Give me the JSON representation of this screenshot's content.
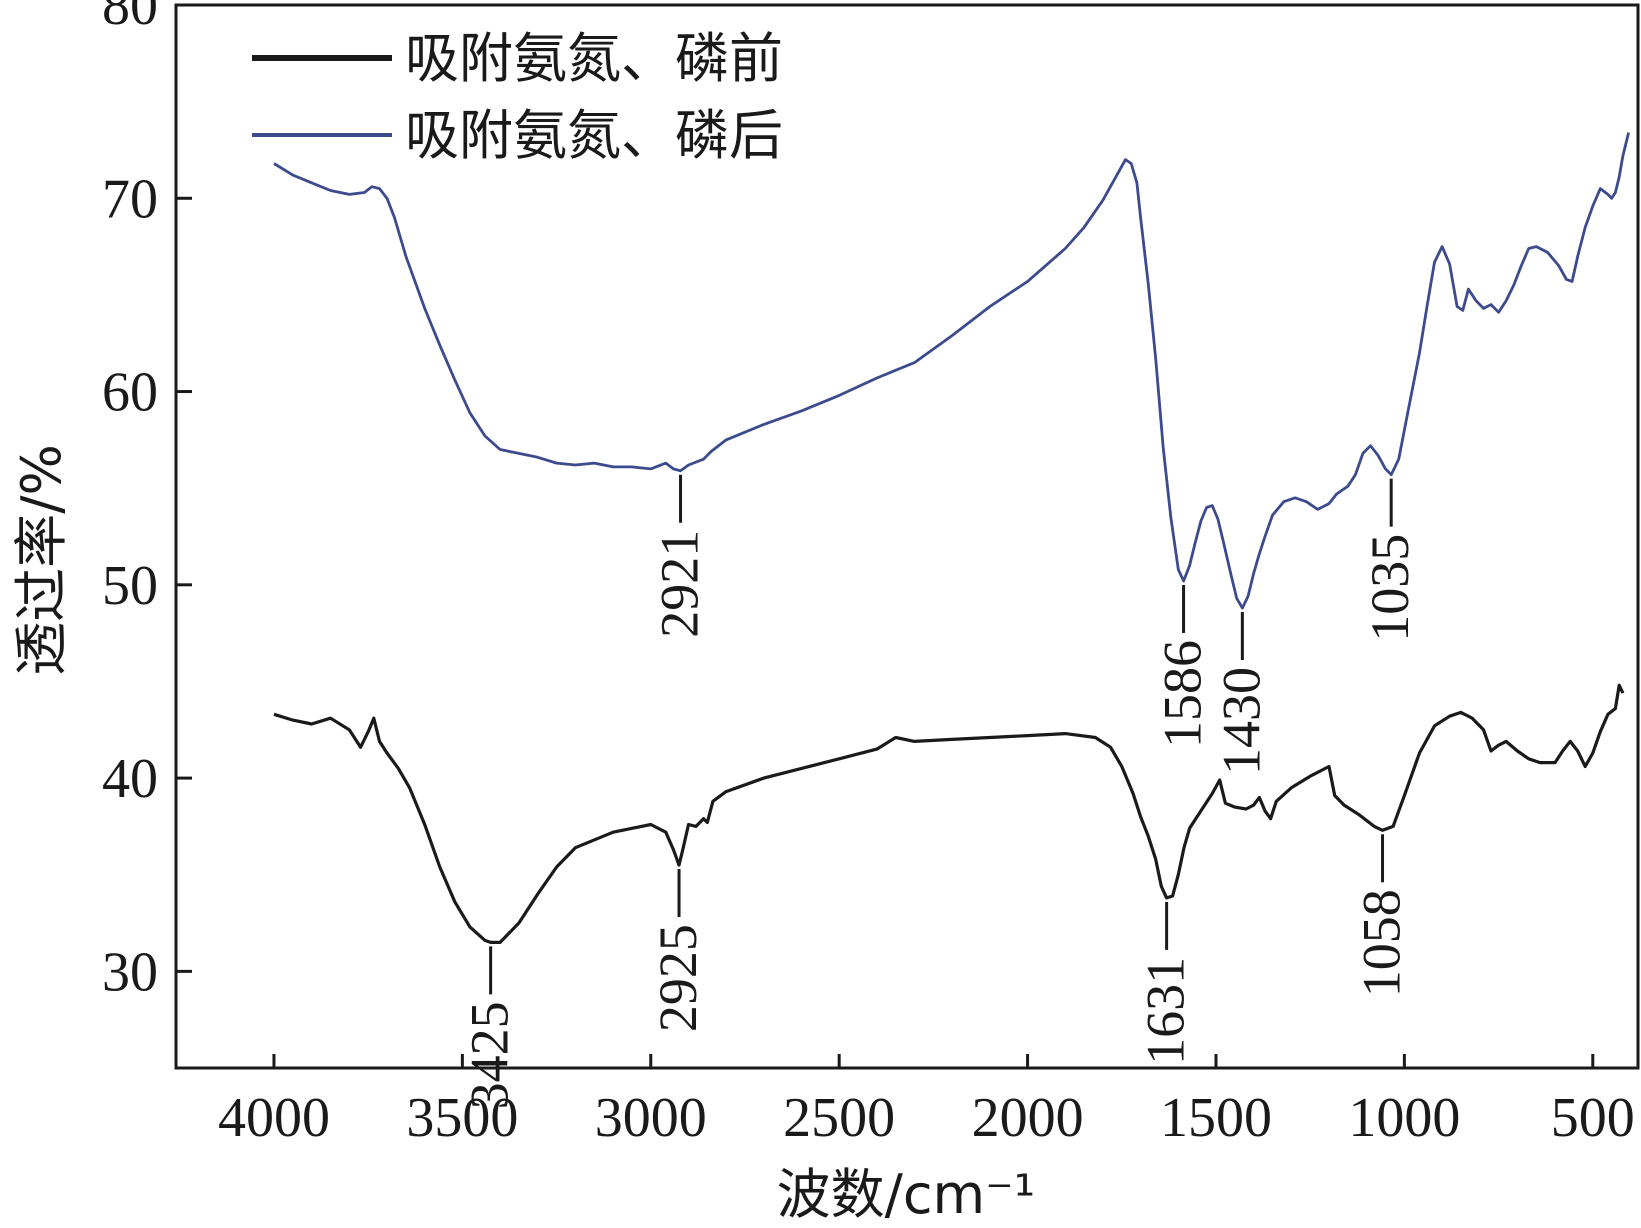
{
  "chart_data": {
    "type": "line",
    "xlabel": "波数/cm⁻¹",
    "ylabel": "透过率/%",
    "xlim": [
      4260,
      380
    ],
    "ylim": [
      25,
      80
    ],
    "x_reversed": true,
    "xticks": [
      4000,
      3500,
      3000,
      2500,
      2000,
      1500,
      1000,
      500
    ],
    "yticks": [
      30,
      40,
      50,
      60,
      70,
      80
    ],
    "legend": {
      "placement": "top-left"
    },
    "grid": false,
    "series": [
      {
        "name": "吸附氨氮、磷前",
        "color": "#1a1a1a",
        "points": [
          [
            4000,
            43.3
          ],
          [
            3950,
            43.0
          ],
          [
            3900,
            42.8
          ],
          [
            3850,
            43.1
          ],
          [
            3800,
            42.5
          ],
          [
            3770,
            41.6
          ],
          [
            3750,
            42.4
          ],
          [
            3735,
            43.1
          ],
          [
            3720,
            41.9
          ],
          [
            3700,
            41.3
          ],
          [
            3670,
            40.5
          ],
          [
            3640,
            39.5
          ],
          [
            3600,
            37.6
          ],
          [
            3560,
            35.4
          ],
          [
            3520,
            33.6
          ],
          [
            3480,
            32.3
          ],
          [
            3440,
            31.6
          ],
          [
            3425,
            31.5
          ],
          [
            3400,
            31.5
          ],
          [
            3350,
            32.5
          ],
          [
            3300,
            34.0
          ],
          [
            3250,
            35.4
          ],
          [
            3200,
            36.4
          ],
          [
            3100,
            37.2
          ],
          [
            3000,
            37.6
          ],
          [
            2960,
            37.2
          ],
          [
            2940,
            36.3
          ],
          [
            2925,
            35.5
          ],
          [
            2915,
            36.3
          ],
          [
            2900,
            37.6
          ],
          [
            2880,
            37.5
          ],
          [
            2860,
            37.9
          ],
          [
            2850,
            37.7
          ],
          [
            2835,
            38.8
          ],
          [
            2800,
            39.3
          ],
          [
            2700,
            40.0
          ],
          [
            2600,
            40.5
          ],
          [
            2500,
            41.0
          ],
          [
            2400,
            41.5
          ],
          [
            2350,
            42.1
          ],
          [
            2300,
            41.9
          ],
          [
            2200,
            42.0
          ],
          [
            2100,
            42.1
          ],
          [
            2000,
            42.2
          ],
          [
            1900,
            42.3
          ],
          [
            1820,
            42.1
          ],
          [
            1780,
            41.6
          ],
          [
            1750,
            40.6
          ],
          [
            1720,
            39.2
          ],
          [
            1700,
            38.0
          ],
          [
            1680,
            37.0
          ],
          [
            1660,
            35.8
          ],
          [
            1645,
            34.4
          ],
          [
            1631,
            33.8
          ],
          [
            1615,
            33.9
          ],
          [
            1600,
            35.0
          ],
          [
            1585,
            36.4
          ],
          [
            1570,
            37.4
          ],
          [
            1540,
            38.3
          ],
          [
            1510,
            39.2
          ],
          [
            1490,
            39.9
          ],
          [
            1475,
            38.7
          ],
          [
            1450,
            38.5
          ],
          [
            1420,
            38.4
          ],
          [
            1400,
            38.6
          ],
          [
            1385,
            39.0
          ],
          [
            1370,
            38.3
          ],
          [
            1355,
            37.9
          ],
          [
            1340,
            38.8
          ],
          [
            1300,
            39.5
          ],
          [
            1250,
            40.1
          ],
          [
            1200,
            40.6
          ],
          [
            1185,
            39.1
          ],
          [
            1160,
            38.6
          ],
          [
            1120,
            38.1
          ],
          [
            1080,
            37.5
          ],
          [
            1058,
            37.3
          ],
          [
            1030,
            37.5
          ],
          [
            1000,
            39.1
          ],
          [
            960,
            41.3
          ],
          [
            920,
            42.7
          ],
          [
            880,
            43.2
          ],
          [
            850,
            43.4
          ],
          [
            820,
            43.1
          ],
          [
            790,
            42.5
          ],
          [
            770,
            41.4
          ],
          [
            750,
            41.7
          ],
          [
            730,
            41.9
          ],
          [
            700,
            41.4
          ],
          [
            670,
            41.0
          ],
          [
            640,
            40.8
          ],
          [
            600,
            40.8
          ],
          [
            580,
            41.4
          ],
          [
            560,
            41.9
          ],
          [
            540,
            41.4
          ],
          [
            520,
            40.6
          ],
          [
            500,
            41.3
          ],
          [
            480,
            42.4
          ],
          [
            460,
            43.3
          ],
          [
            440,
            43.6
          ],
          [
            430,
            44.8
          ],
          [
            420,
            44.4
          ]
        ]
      },
      {
        "name": "吸附氨氮、磷后",
        "color": "#3c4a8e",
        "points": [
          [
            4000,
            71.8
          ],
          [
            3950,
            71.2
          ],
          [
            3900,
            70.8
          ],
          [
            3850,
            70.4
          ],
          [
            3800,
            70.2
          ],
          [
            3760,
            70.3
          ],
          [
            3740,
            70.6
          ],
          [
            3720,
            70.5
          ],
          [
            3700,
            70.0
          ],
          [
            3680,
            69.0
          ],
          [
            3650,
            67.0
          ],
          [
            3600,
            64.3
          ],
          [
            3560,
            62.4
          ],
          [
            3520,
            60.6
          ],
          [
            3480,
            58.9
          ],
          [
            3440,
            57.7
          ],
          [
            3400,
            57.0
          ],
          [
            3350,
            56.8
          ],
          [
            3300,
            56.6
          ],
          [
            3250,
            56.3
          ],
          [
            3200,
            56.2
          ],
          [
            3150,
            56.3
          ],
          [
            3100,
            56.1
          ],
          [
            3050,
            56.1
          ],
          [
            3000,
            56.0
          ],
          [
            2960,
            56.3
          ],
          [
            2940,
            56.0
          ],
          [
            2921,
            55.9
          ],
          [
            2900,
            56.2
          ],
          [
            2860,
            56.5
          ],
          [
            2840,
            56.9
          ],
          [
            2800,
            57.5
          ],
          [
            2700,
            58.3
          ],
          [
            2600,
            59.0
          ],
          [
            2500,
            59.8
          ],
          [
            2400,
            60.7
          ],
          [
            2300,
            61.5
          ],
          [
            2200,
            62.9
          ],
          [
            2100,
            64.4
          ],
          [
            2000,
            65.7
          ],
          [
            1900,
            67.4
          ],
          [
            1850,
            68.5
          ],
          [
            1800,
            69.9
          ],
          [
            1760,
            71.3
          ],
          [
            1740,
            72.0
          ],
          [
            1725,
            71.8
          ],
          [
            1710,
            70.8
          ],
          [
            1700,
            69.0
          ],
          [
            1680,
            65.6
          ],
          [
            1660,
            61.7
          ],
          [
            1640,
            57.1
          ],
          [
            1620,
            53.5
          ],
          [
            1600,
            50.8
          ],
          [
            1586,
            50.2
          ],
          [
            1570,
            51.0
          ],
          [
            1555,
            52.2
          ],
          [
            1540,
            53.3
          ],
          [
            1525,
            54.0
          ],
          [
            1510,
            54.1
          ],
          [
            1495,
            53.4
          ],
          [
            1480,
            52.2
          ],
          [
            1460,
            50.5
          ],
          [
            1445,
            49.3
          ],
          [
            1430,
            48.8
          ],
          [
            1415,
            49.4
          ],
          [
            1400,
            50.6
          ],
          [
            1385,
            51.6
          ],
          [
            1370,
            52.5
          ],
          [
            1350,
            53.6
          ],
          [
            1320,
            54.3
          ],
          [
            1290,
            54.5
          ],
          [
            1260,
            54.3
          ],
          [
            1230,
            53.9
          ],
          [
            1200,
            54.2
          ],
          [
            1180,
            54.7
          ],
          [
            1150,
            55.1
          ],
          [
            1130,
            55.7
          ],
          [
            1110,
            56.8
          ],
          [
            1090,
            57.2
          ],
          [
            1070,
            56.7
          ],
          [
            1050,
            56.0
          ],
          [
            1035,
            55.7
          ],
          [
            1015,
            56.5
          ],
          [
            990,
            59.0
          ],
          [
            960,
            62.0
          ],
          [
            940,
            64.4
          ],
          [
            920,
            66.7
          ],
          [
            900,
            67.5
          ],
          [
            880,
            66.6
          ],
          [
            860,
            64.4
          ],
          [
            845,
            64.2
          ],
          [
            830,
            65.3
          ],
          [
            810,
            64.7
          ],
          [
            790,
            64.3
          ],
          [
            770,
            64.5
          ],
          [
            750,
            64.1
          ],
          [
            730,
            64.7
          ],
          [
            710,
            65.5
          ],
          [
            690,
            66.5
          ],
          [
            670,
            67.4
          ],
          [
            650,
            67.5
          ],
          [
            620,
            67.2
          ],
          [
            590,
            66.5
          ],
          [
            570,
            65.8
          ],
          [
            555,
            65.7
          ],
          [
            540,
            67.0
          ],
          [
            520,
            68.5
          ],
          [
            500,
            69.6
          ],
          [
            480,
            70.5
          ],
          [
            460,
            70.2
          ],
          [
            450,
            70.0
          ],
          [
            440,
            70.3
          ],
          [
            430,
            71.1
          ],
          [
            420,
            72.2
          ],
          [
            410,
            73.0
          ],
          [
            405,
            73.4
          ]
        ]
      }
    ],
    "annotations": [
      {
        "label": "2921",
        "x": 2921,
        "series": 1
      },
      {
        "label": "1586",
        "x": 1586,
        "series": 1
      },
      {
        "label": "1430",
        "x": 1430,
        "series": 1
      },
      {
        "label": "1035",
        "x": 1035,
        "series": 1
      },
      {
        "label": "3425",
        "x": 3425,
        "series": 0
      },
      {
        "label": "2925",
        "x": 2925,
        "series": 0
      },
      {
        "label": "1631",
        "x": 1631,
        "series": 0
      },
      {
        "label": "1058",
        "x": 1058,
        "series": 0
      }
    ]
  }
}
